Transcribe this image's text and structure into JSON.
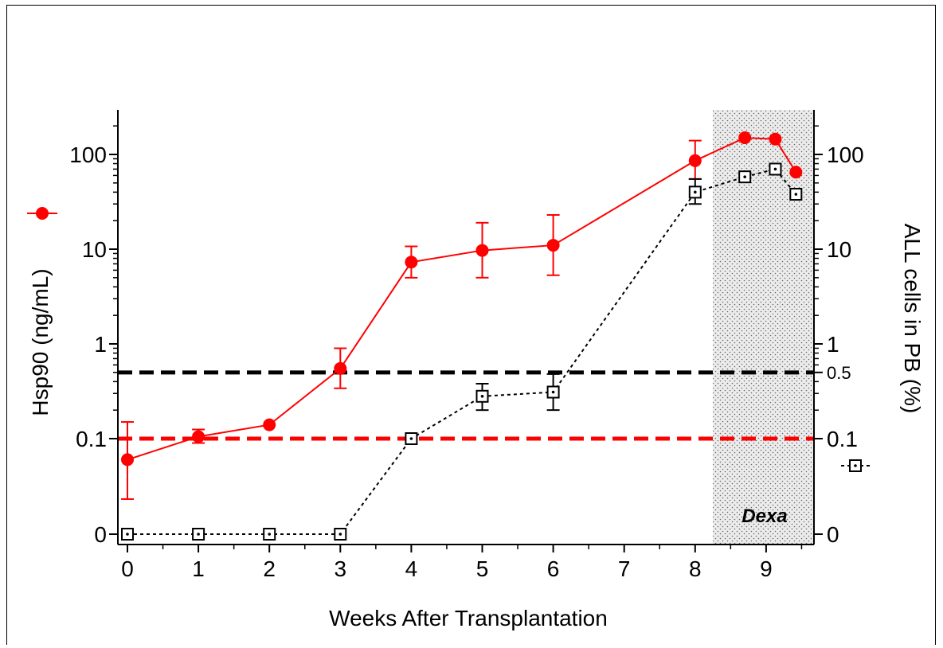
{
  "chart_data": {
    "type": "line",
    "xlabel": "Weeks After Transplantation",
    "ylabel_left": "Hsp90 (ng/mL)",
    "ylabel_right": "ALL cells in PB (%)",
    "y_scale": "log with 0 baseline",
    "x_ticks": [
      "0",
      "1",
      "2",
      "3",
      "4",
      "5",
      "6",
      "7",
      "8",
      "9"
    ],
    "y_left_ticks": [
      {
        "value": 0,
        "label": "0"
      },
      {
        "value": 0.1,
        "label": "0.1"
      },
      {
        "value": 1,
        "label": "1"
      },
      {
        "value": 10,
        "label": "10"
      },
      {
        "value": 100,
        "label": "100"
      }
    ],
    "y_right_ticks": [
      {
        "value": 0,
        "label": "0"
      },
      {
        "value": 0.1,
        "label": "0.1"
      },
      {
        "value": 0.5,
        "label": "0.5"
      },
      {
        "value": 1,
        "label": "1"
      },
      {
        "value": 10,
        "label": "10"
      },
      {
        "value": 100,
        "label": "100"
      }
    ],
    "shaded_region": {
      "x_start": 8.25,
      "x_end": 9.7,
      "label": "Dexa"
    },
    "threshold_lines": [
      {
        "value": 0.5,
        "color": "#000000",
        "style": "dashed"
      },
      {
        "value": 0.1,
        "color": "#ff0000",
        "style": "dashed"
      }
    ],
    "series": [
      {
        "marker": "filled-circle",
        "line_style": "solid",
        "color": "#ff0000",
        "points": [
          {
            "x": 0,
            "y": 0.06,
            "err_low": 0.023,
            "err_high": 0.15
          },
          {
            "x": 1,
            "y": 0.105,
            "err_low": 0.09,
            "err_high": 0.125
          },
          {
            "x": 2,
            "y": 0.14
          },
          {
            "x": 3,
            "y": 0.55,
            "err_low": 0.34,
            "err_high": 0.9
          },
          {
            "x": 4,
            "y": 7.3,
            "err_low": 5.0,
            "err_high": 10.7
          },
          {
            "x": 5,
            "y": 9.7,
            "err_low": 5.0,
            "err_high": 19
          },
          {
            "x": 6,
            "y": 11,
            "err_low": 5.3,
            "err_high": 23
          },
          {
            "x": 8,
            "y": 86,
            "err_low": 55,
            "err_high": 140
          },
          {
            "x": 8.7,
            "y": 150
          },
          {
            "x": 9.13,
            "y": 145
          },
          {
            "x": 9.42,
            "y": 65
          }
        ]
      },
      {
        "marker": "open-square",
        "line_style": "dotted",
        "color": "#000000",
        "points": [
          {
            "x": 0,
            "y": 0
          },
          {
            "x": 1,
            "y": 0
          },
          {
            "x": 2,
            "y": 0
          },
          {
            "x": 3,
            "y": 0
          },
          {
            "x": 4,
            "y": 0.1
          },
          {
            "x": 5,
            "y": 0.28,
            "err_low": 0.2,
            "err_high": 0.38
          },
          {
            "x": 6,
            "y": 0.31,
            "err_low": 0.2,
            "err_high": 0.48
          },
          {
            "x": 8,
            "y": 40,
            "err_low": 30,
            "err_high": 55
          },
          {
            "x": 8.7,
            "y": 58
          },
          {
            "x": 9.13,
            "y": 70
          },
          {
            "x": 9.42,
            "y": 38
          }
        ]
      }
    ],
    "colors": {
      "red": "#ff0000",
      "black": "#000000",
      "shade": "#e6e6e6"
    }
  }
}
